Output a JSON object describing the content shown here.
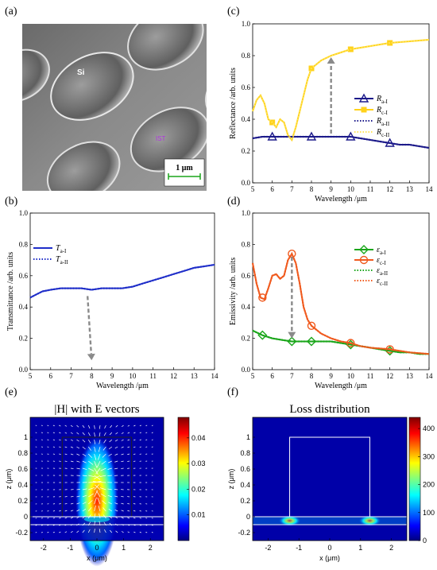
{
  "panel_labels": [
    "(a)",
    "(b)",
    "(c)",
    "(d)",
    "(e)",
    "(f)"
  ],
  "sem": {
    "labels": {
      "si": "Si",
      "ist": "IST"
    },
    "scale_bar": "1 μm"
  },
  "chart_data": [
    {
      "id": "b",
      "type": "line",
      "xlabel": "Wavelength /μm",
      "ylabel": "Transmittance /arb. units",
      "xlim": [
        5,
        14
      ],
      "ylim": [
        0,
        1.0
      ],
      "xticks": [
        5,
        6,
        7,
        8,
        9,
        10,
        11,
        12,
        13,
        14
      ],
      "yticks": [
        0.0,
        0.2,
        0.4,
        0.6,
        0.8,
        1.0
      ],
      "legend": {
        "position": "top-left",
        "entries": [
          "T_a-I",
          "T_a-II"
        ]
      },
      "series": [
        {
          "name": "T_a-I",
          "color": "#1f2ec9",
          "style": "solid",
          "x": [
            5,
            5.3,
            5.6,
            6,
            6.5,
            7,
            7.5,
            8,
            8.5,
            9,
            9.5,
            10,
            10.5,
            11,
            11.5,
            12,
            12.5,
            13,
            13.5,
            14
          ],
          "y": [
            0.46,
            0.48,
            0.5,
            0.51,
            0.52,
            0.52,
            0.52,
            0.51,
            0.52,
            0.52,
            0.52,
            0.53,
            0.55,
            0.57,
            0.59,
            0.61,
            0.63,
            0.65,
            0.66,
            0.67
          ]
        },
        {
          "name": "T_a-II",
          "color": "#1f2ec9",
          "style": "dotted",
          "x": [
            5,
            5.3,
            5.6,
            6,
            6.5,
            7,
            7.5,
            8,
            8.5,
            9,
            9.5,
            10,
            10.5,
            11,
            11.5,
            12,
            12.5,
            13,
            13.5,
            14
          ],
          "y": [
            0.46,
            0.48,
            0.5,
            0.51,
            0.52,
            0.52,
            0.52,
            0.51,
            0.52,
            0.52,
            0.52,
            0.53,
            0.55,
            0.57,
            0.59,
            0.61,
            0.63,
            0.65,
            0.66,
            0.67
          ]
        }
      ],
      "arrow": {
        "from": [
          7.8,
          0.47
        ],
        "to": [
          8.0,
          0.06
        ]
      }
    },
    {
      "id": "c",
      "type": "line",
      "xlabel": "Wavelength /μm",
      "ylabel": "Reflectance /arb. units",
      "xlim": [
        5,
        14
      ],
      "ylim": [
        0,
        1.0
      ],
      "xticks": [
        5,
        6,
        7,
        8,
        9,
        10,
        11,
        12,
        13,
        14
      ],
      "yticks": [
        0.0,
        0.2,
        0.4,
        0.6,
        0.8,
        1.0
      ],
      "legend": {
        "position": "right",
        "entries": [
          "R_a-I",
          "R_c-I",
          "R_a-II",
          "R_c-II"
        ]
      },
      "series": [
        {
          "name": "R_a-I",
          "color": "#1c1a8a",
          "style": "solid",
          "marker": "triangle",
          "x": [
            5,
            5.5,
            6,
            6.5,
            7,
            7.5,
            8,
            8.5,
            9,
            9.5,
            10,
            10.5,
            11,
            11.5,
            12,
            12.5,
            13,
            13.5,
            14
          ],
          "y": [
            0.28,
            0.29,
            0.29,
            0.29,
            0.29,
            0.29,
            0.29,
            0.29,
            0.29,
            0.29,
            0.29,
            0.28,
            0.27,
            0.26,
            0.25,
            0.24,
            0.24,
            0.23,
            0.22
          ],
          "marker_x": [
            6,
            8,
            10,
            12
          ]
        },
        {
          "name": "R_c-I",
          "color": "#ffd21a",
          "style": "solid",
          "marker": "square",
          "x": [
            5,
            5.2,
            5.4,
            5.6,
            5.8,
            6,
            6.2,
            6.4,
            6.6,
            6.8,
            7,
            7.2,
            7.5,
            7.8,
            8,
            8.5,
            9,
            9.5,
            10,
            10.5,
            11,
            11.5,
            12,
            12.5,
            13,
            13.5,
            14
          ],
          "y": [
            0.45,
            0.52,
            0.55,
            0.5,
            0.4,
            0.38,
            0.35,
            0.4,
            0.38,
            0.3,
            0.27,
            0.35,
            0.5,
            0.65,
            0.72,
            0.77,
            0.8,
            0.82,
            0.84,
            0.85,
            0.86,
            0.87,
            0.88,
            0.885,
            0.89,
            0.895,
            0.9
          ],
          "marker_x": [
            6,
            8,
            10,
            12
          ]
        },
        {
          "name": "R_a-II",
          "color": "#1c1a8a",
          "style": "dotted",
          "x": [
            5,
            5.5,
            6,
            6.5,
            7,
            7.5,
            8,
            8.5,
            9,
            9.5,
            10,
            10.5,
            11,
            11.5,
            12,
            12.5,
            13,
            13.5,
            14
          ],
          "y": [
            0.28,
            0.29,
            0.29,
            0.29,
            0.29,
            0.29,
            0.29,
            0.29,
            0.29,
            0.29,
            0.29,
            0.28,
            0.27,
            0.26,
            0.25,
            0.24,
            0.24,
            0.23,
            0.22
          ]
        },
        {
          "name": "R_c-II",
          "color": "#ffe45a",
          "style": "dotted",
          "x": [
            5,
            5.2,
            5.4,
            5.6,
            5.8,
            6,
            6.2,
            6.4,
            6.6,
            6.8,
            7,
            7.2,
            7.5,
            7.8,
            8,
            8.5,
            9,
            9.5,
            10,
            10.5,
            11,
            11.5,
            12,
            12.5,
            13,
            13.5,
            14
          ],
          "y": [
            0.45,
            0.52,
            0.55,
            0.5,
            0.4,
            0.38,
            0.35,
            0.4,
            0.38,
            0.3,
            0.27,
            0.35,
            0.5,
            0.65,
            0.72,
            0.77,
            0.8,
            0.82,
            0.84,
            0.85,
            0.86,
            0.87,
            0.88,
            0.885,
            0.89,
            0.895,
            0.9
          ]
        }
      ],
      "arrow": {
        "from": [
          9.0,
          0.31
        ],
        "to": [
          9.0,
          0.79
        ]
      }
    },
    {
      "id": "d",
      "type": "line",
      "xlabel": "Wavelength /μm",
      "ylabel": "Emissivity /arb. units",
      "xlim": [
        5,
        14
      ],
      "ylim": [
        0,
        1.0
      ],
      "xticks": [
        5,
        6,
        7,
        8,
        9,
        10,
        11,
        12,
        13,
        14
      ],
      "yticks": [
        0.0,
        0.2,
        0.4,
        0.6,
        0.8,
        1.0
      ],
      "legend": {
        "position": "top-right",
        "entries": [
          "ε_a-I",
          "ε_c-I",
          "ε_a-II",
          "ε_c-II"
        ]
      },
      "series": [
        {
          "name": "ε_a-I",
          "color": "#1aa61a",
          "style": "solid",
          "marker": "diamond",
          "x": [
            5,
            5.5,
            6,
            6.5,
            7,
            7.5,
            8,
            8.5,
            9,
            9.5,
            10,
            10.5,
            11,
            11.5,
            12,
            12.5,
            13,
            13.5,
            14
          ],
          "y": [
            0.25,
            0.22,
            0.2,
            0.19,
            0.18,
            0.18,
            0.18,
            0.18,
            0.18,
            0.17,
            0.16,
            0.15,
            0.14,
            0.13,
            0.12,
            0.11,
            0.11,
            0.1,
            0.1
          ],
          "marker_x": [
            5.5,
            7,
            8,
            10,
            12
          ]
        },
        {
          "name": "ε_c-I",
          "color": "#f05a1e",
          "style": "solid",
          "marker": "circle",
          "x": [
            5,
            5.2,
            5.4,
            5.6,
            5.8,
            6,
            6.2,
            6.4,
            6.6,
            6.8,
            7,
            7.2,
            7.4,
            7.6,
            7.8,
            8,
            8.5,
            9,
            9.5,
            10,
            10.5,
            11,
            12,
            13,
            14
          ],
          "y": [
            0.68,
            0.55,
            0.46,
            0.45,
            0.52,
            0.6,
            0.61,
            0.58,
            0.6,
            0.7,
            0.74,
            0.68,
            0.55,
            0.4,
            0.32,
            0.28,
            0.23,
            0.2,
            0.18,
            0.17,
            0.15,
            0.14,
            0.13,
            0.11,
            0.1
          ],
          "marker_x": [
            5.5,
            7,
            8,
            10,
            12
          ]
        },
        {
          "name": "ε_a-II",
          "color": "#1aa61a",
          "style": "dotted",
          "x": [
            5,
            5.5,
            6,
            6.5,
            7,
            7.5,
            8,
            8.5,
            9,
            9.5,
            10,
            10.5,
            11,
            11.5,
            12,
            12.5,
            13,
            13.5,
            14
          ],
          "y": [
            0.25,
            0.22,
            0.2,
            0.19,
            0.18,
            0.18,
            0.18,
            0.18,
            0.18,
            0.17,
            0.16,
            0.15,
            0.14,
            0.13,
            0.12,
            0.11,
            0.11,
            0.1,
            0.1
          ]
        },
        {
          "name": "ε_c-II",
          "color": "#f05a1e",
          "style": "dotted",
          "x": [
            5,
            5.2,
            5.4,
            5.6,
            5.8,
            6,
            6.2,
            6.4,
            6.6,
            6.8,
            7,
            7.2,
            7.4,
            7.6,
            7.8,
            8,
            8.5,
            9,
            9.5,
            10,
            10.5,
            11,
            12,
            13,
            14
          ],
          "y": [
            0.68,
            0.55,
            0.46,
            0.45,
            0.52,
            0.6,
            0.61,
            0.58,
            0.6,
            0.7,
            0.74,
            0.68,
            0.55,
            0.4,
            0.32,
            0.28,
            0.23,
            0.2,
            0.18,
            0.17,
            0.15,
            0.14,
            0.13,
            0.11,
            0.1
          ]
        }
      ],
      "arrow": {
        "from": [
          7.0,
          0.72
        ],
        "to": [
          7.0,
          0.2
        ]
      }
    },
    {
      "id": "e",
      "type": "heatmap",
      "title": "|H| with E vectors",
      "xlabel": "x (μm)",
      "ylabel": "z (μm)",
      "xlim": [
        -2.5,
        2.5
      ],
      "ylim": [
        -0.3,
        1.25
      ],
      "xticks": [
        -2,
        -1,
        0,
        1,
        2
      ],
      "yticks": [
        -0.2,
        0,
        0.2,
        0.4,
        0.6,
        0.8,
        1.0
      ],
      "colorbar_ticks": [
        0.01,
        0.02,
        0.03,
        0.04
      ],
      "colorbar_range": [
        0,
        0.048
      ],
      "hotspot": {
        "x": 0.0,
        "z": 0.2,
        "peak": 0.048,
        "sx": 0.6,
        "sz": 0.55
      },
      "structure": {
        "pillar_x": [
          -1.3,
          1.3
        ],
        "pillar_top": 1.0,
        "layer_z": [
          -0.1,
          0.0
        ]
      }
    },
    {
      "id": "f",
      "type": "heatmap",
      "title": "Loss distribution",
      "xlabel": "x (μm)",
      "ylabel": "z (μm)",
      "xlim": [
        -2.5,
        2.5
      ],
      "ylim": [
        -0.3,
        1.25
      ],
      "xticks": [
        -2,
        -1,
        0,
        1,
        2
      ],
      "yticks": [
        -0.2,
        0,
        0.2,
        0.4,
        0.6,
        0.8,
        1.0
      ],
      "colorbar_ticks": [
        0,
        100,
        200,
        300,
        400
      ],
      "colorbar_range": [
        0,
        440
      ],
      "hotspots": [
        {
          "x": -1.3,
          "z": -0.05,
          "peak": 420
        },
        {
          "x": 1.3,
          "z": -0.05,
          "peak": 420
        }
      ],
      "structure": {
        "pillar_x": [
          -1.3,
          1.3
        ],
        "pillar_top": 1.0,
        "layer_z": [
          -0.1,
          0.0
        ]
      }
    }
  ],
  "colors": {
    "jet": [
      "#00007f",
      "#0000ff",
      "#007fff",
      "#00ffff",
      "#7fff7f",
      "#ffff00",
      "#ff7f00",
      "#ff0000",
      "#7f0000"
    ]
  }
}
